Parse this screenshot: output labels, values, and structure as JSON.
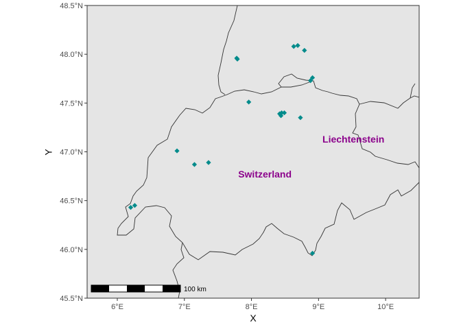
{
  "map": {
    "x_axis_title": "X",
    "y_axis_title": "Y",
    "x_ticks": [
      {
        "value": 6,
        "label": "6°E"
      },
      {
        "value": 7,
        "label": "7°E"
      },
      {
        "value": 8,
        "label": "8°E"
      },
      {
        "value": 9,
        "label": "9°E"
      },
      {
        "value": 10,
        "label": "10°E"
      }
    ],
    "y_ticks": [
      {
        "value": 45.5,
        "label": "45.5°N"
      },
      {
        "value": 46.0,
        "label": "46.0°N"
      },
      {
        "value": 46.5,
        "label": "46.5°N"
      },
      {
        "value": 47.0,
        "label": "47.0°N"
      },
      {
        "value": 47.5,
        "label": "47.5°N"
      },
      {
        "value": 48.0,
        "label": "48.0°N"
      },
      {
        "value": 48.5,
        "label": "48.5°N"
      }
    ],
    "extent": {
      "lon": [
        5.55,
        10.5
      ],
      "lat": [
        45.5,
        48.5
      ]
    },
    "labels": [
      {
        "text": "Switzerland",
        "lon": 8.2,
        "lat": 46.77
      },
      {
        "text": "Liechtenstein",
        "lon": 9.52,
        "lat": 47.13
      }
    ],
    "label_color": "#8b008b",
    "point_color": "#008b8b",
    "panel_color": "#e5e5e5",
    "points": [
      {
        "lon": 7.78,
        "lat": 47.96
      },
      {
        "lon": 7.79,
        "lat": 47.95
      },
      {
        "lon": 8.63,
        "lat": 48.08
      },
      {
        "lon": 8.69,
        "lat": 48.09
      },
      {
        "lon": 8.79,
        "lat": 48.04
      },
      {
        "lon": 8.88,
        "lat": 47.73
      },
      {
        "lon": 8.91,
        "lat": 47.76
      },
      {
        "lon": 7.96,
        "lat": 47.51
      },
      {
        "lon": 8.42,
        "lat": 47.39
      },
      {
        "lon": 8.45,
        "lat": 47.4
      },
      {
        "lon": 8.49,
        "lat": 47.4
      },
      {
        "lon": 8.44,
        "lat": 47.37
      },
      {
        "lon": 8.73,
        "lat": 47.35
      },
      {
        "lon": 6.89,
        "lat": 47.01
      },
      {
        "lon": 7.15,
        "lat": 46.87
      },
      {
        "lon": 7.36,
        "lat": 46.89
      },
      {
        "lon": 6.2,
        "lat": 46.43
      },
      {
        "lon": 6.26,
        "lat": 46.45
      },
      {
        "lon": 8.91,
        "lat": 45.96
      }
    ],
    "scale_bar": {
      "label": "100 km",
      "segments": 5
    }
  }
}
